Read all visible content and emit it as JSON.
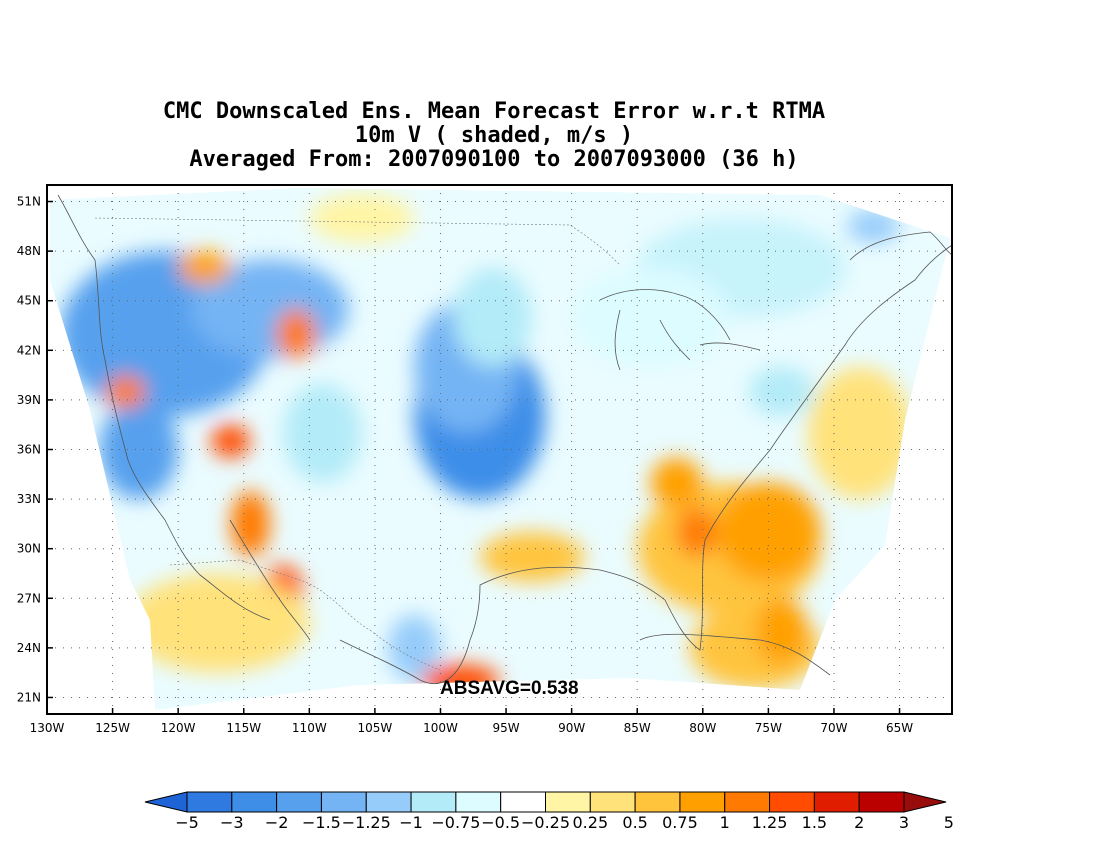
{
  "title": {
    "line1": "CMC Downscaled Ens. Mean Forecast Error w.r.t RTMA",
    "line2": "10m V ( shaded, m/s )",
    "line3": "Averaged From: 2007090100 to 2007093000 (36 h)"
  },
  "map": {
    "projection": "lat-lon",
    "lon_range": [
      -130,
      -61
    ],
    "lat_range": [
      20,
      52
    ],
    "lat_ticks": [
      "51N",
      "48N",
      "45N",
      "42N",
      "39N",
      "36N",
      "33N",
      "30N",
      "27N",
      "24N",
      "21N"
    ],
    "lat_values": [
      51,
      48,
      45,
      42,
      39,
      36,
      33,
      30,
      27,
      24,
      21
    ],
    "lon_ticks": [
      "130W",
      "125W",
      "120W",
      "115W",
      "110W",
      "105W",
      "100W",
      "95W",
      "90W",
      "85W",
      "80W",
      "75W",
      "70W",
      "65W"
    ],
    "lon_values": [
      -130,
      -125,
      -120,
      -115,
      -110,
      -105,
      -100,
      -95,
      -90,
      -85,
      -80,
      -75,
      -70,
      -65
    ],
    "grid": true,
    "annotation": "ABSAVG=0.538",
    "field_blobs": [
      {
        "lon": -121,
        "lat": 43,
        "value": -1.5,
        "rx": 8,
        "ry": 5
      },
      {
        "lon": -113,
        "lat": 44.5,
        "value": -1.25,
        "rx": 6,
        "ry": 3
      },
      {
        "lon": -97,
        "lat": 38,
        "value": -2,
        "rx": 5,
        "ry": 5
      },
      {
        "lon": -98,
        "lat": 41,
        "value": -1.25,
        "rx": 4,
        "ry": 4
      },
      {
        "lon": -96,
        "lat": 44,
        "value": -0.75,
        "rx": 3,
        "ry": 3
      },
      {
        "lon": -123,
        "lat": 36,
        "value": -1.5,
        "rx": 3,
        "ry": 3
      },
      {
        "lon": -109,
        "lat": 37,
        "value": -0.75,
        "rx": 3,
        "ry": 3
      },
      {
        "lon": -102,
        "lat": 24,
        "value": -1,
        "rx": 2,
        "ry": 2
      },
      {
        "lon": -74,
        "lat": 39.5,
        "value": -0.75,
        "rx": 2.5,
        "ry": 1.5
      },
      {
        "lon": -67,
        "lat": 49.5,
        "value": -1,
        "rx": 2,
        "ry": 1
      },
      {
        "lon": -77,
        "lat": 47,
        "value": -0.5,
        "rx": 8,
        "ry": 3
      },
      {
        "lon": -84,
        "lat": 44,
        "value": -0.25,
        "rx": 6,
        "ry": 3
      },
      {
        "lon": -118,
        "lat": 47,
        "value": 1,
        "rx": 2,
        "ry": 1
      },
      {
        "lon": -111,
        "lat": 43,
        "value": 1.25,
        "rx": 1.5,
        "ry": 1.5
      },
      {
        "lon": -124,
        "lat": 39.5,
        "value": 1.25,
        "rx": 1.5,
        "ry": 1
      },
      {
        "lon": -116,
        "lat": 36.5,
        "value": 1.5,
        "rx": 1.5,
        "ry": 1
      },
      {
        "lon": -112,
        "lat": 27.5,
        "value": 1.75,
        "rx": 1.5,
        "ry": 1.5
      },
      {
        "lon": -114.5,
        "lat": 31.5,
        "value": 1.25,
        "rx": 1.5,
        "ry": 2
      },
      {
        "lon": -98.5,
        "lat": 22,
        "value": 1.75,
        "rx": 3,
        "ry": 1
      },
      {
        "lon": -93,
        "lat": 29.5,
        "value": 0.75,
        "rx": 4,
        "ry": 1.5
      },
      {
        "lon": -78,
        "lat": 30,
        "value": 0.75,
        "rx": 7,
        "ry": 4
      },
      {
        "lon": -75,
        "lat": 31,
        "value": 1,
        "rx": 4,
        "ry": 3
      },
      {
        "lon": -80.5,
        "lat": 31,
        "value": 1.25,
        "rx": 1.5,
        "ry": 1.5
      },
      {
        "lon": -82,
        "lat": 34,
        "value": 1,
        "rx": 2,
        "ry": 1.5
      },
      {
        "lon": -76,
        "lat": 24,
        "value": 0.75,
        "rx": 5,
        "ry": 2.5
      },
      {
        "lon": -74,
        "lat": 25,
        "value": 1,
        "rx": 2,
        "ry": 2
      },
      {
        "lon": -117,
        "lat": 25.5,
        "value": 0.5,
        "rx": 7,
        "ry": 3
      },
      {
        "lon": -106,
        "lat": 50,
        "value": 0.25,
        "rx": 4,
        "ry": 1.5
      },
      {
        "lon": -68,
        "lat": 37,
        "value": 0.5,
        "rx": 4,
        "ry": 4
      }
    ]
  },
  "colorbar": {
    "colors": [
      "#1e64d6",
      "#2f7ae0",
      "#3e8ee8",
      "#56a0ee",
      "#74b4f4",
      "#96ccfa",
      "#b3ebf8",
      "#dcfcff",
      "#ffffff",
      "#fff5a5",
      "#ffe27a",
      "#ffc43c",
      "#ffa000",
      "#ff7a00",
      "#ff4c00",
      "#e11d00",
      "#bb0000",
      "#980c0c"
    ],
    "labels": [
      "−5",
      "−3",
      "−2",
      "−1.5",
      "−1.25",
      "−1",
      "−0.75",
      "−0.5",
      "−0.25",
      "0.25",
      "0.5",
      "0.75",
      "1",
      "1.25",
      "1.5",
      "2",
      "3",
      "5"
    ],
    "levels": [
      -5,
      -3,
      -2,
      -1.5,
      -1.25,
      -1,
      -0.75,
      -0.5,
      -0.25,
      0.25,
      0.5,
      0.75,
      1,
      1.25,
      1.5,
      2,
      3,
      5
    ]
  }
}
